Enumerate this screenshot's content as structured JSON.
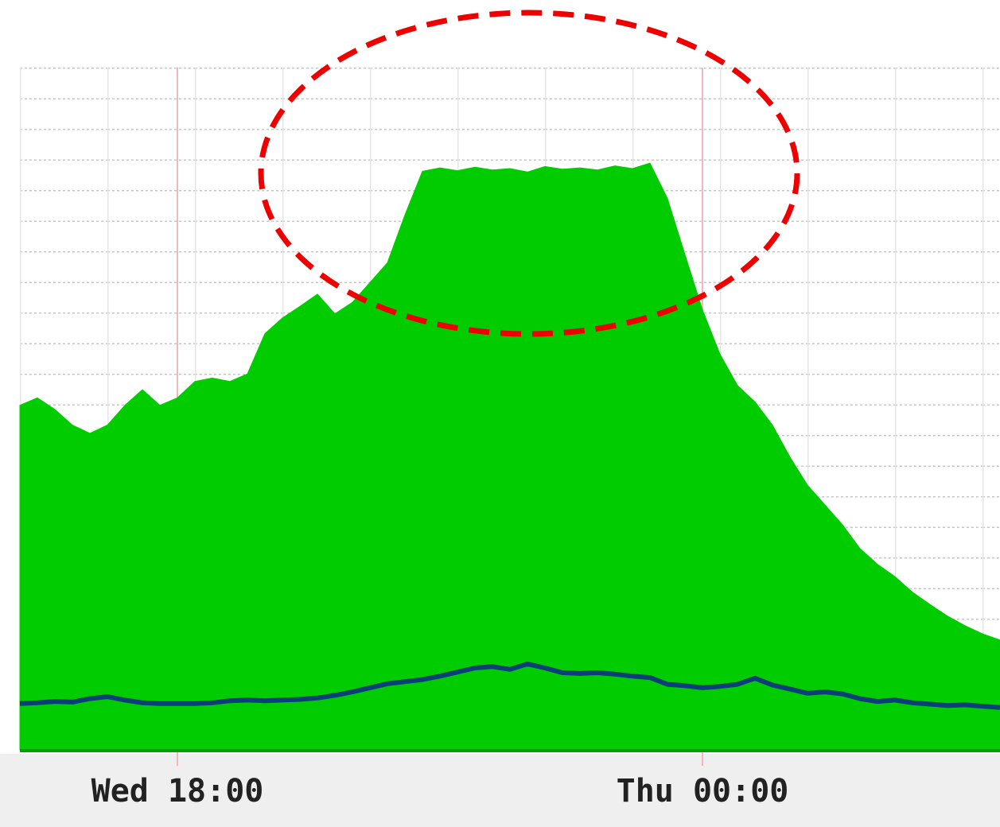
{
  "chart_data": {
    "type": "area",
    "categories": [
      null,
      null,
      null,
      null,
      null,
      null,
      null,
      null,
      null,
      "Wed 18:00",
      null,
      null,
      null,
      null,
      null,
      null,
      null,
      null,
      null,
      null,
      null,
      null,
      null,
      null,
      null,
      null,
      null,
      null,
      null,
      null,
      null,
      null,
      null,
      null,
      null,
      null,
      null,
      null,
      null,
      "Thu 00:00",
      null,
      null,
      null,
      null,
      null,
      null,
      null,
      null,
      null,
      null,
      null,
      null,
      null,
      null,
      null,
      null,
      null
    ],
    "series": [
      {
        "color": "#00cc00",
        "fill": true,
        "values": [
          50.5,
          51.6,
          49.9,
          47.6,
          46.4,
          47.6,
          50.5,
          52.8,
          50.5,
          51.6,
          54.0,
          54.5,
          54.0,
          55.1,
          61.0,
          63.3,
          65.0,
          66.8,
          63.9,
          65.6,
          68.5,
          71.4,
          78.4,
          84.8,
          85.3,
          84.9,
          85.4,
          85.0,
          85.2,
          84.7,
          85.5,
          85.1,
          85.3,
          85.0,
          85.6,
          85.2,
          86.0,
          80.8,
          72.6,
          64.5,
          58.0,
          53.4,
          51.0,
          47.6,
          42.9,
          38.8,
          35.9,
          33.0,
          29.5,
          27.2,
          25.4,
          23.1,
          21.3,
          19.6,
          18.2,
          17.0,
          16.1
        ]
      },
      {
        "color": "#0a3f78",
        "fill": false,
        "values": [
          6.8,
          6.9,
          7.1,
          7.0,
          7.5,
          7.8,
          7.3,
          6.9,
          6.8,
          6.8,
          6.8,
          6.9,
          7.2,
          7.3,
          7.2,
          7.3,
          7.4,
          7.6,
          8.0,
          8.5,
          9.1,
          9.7,
          10.0,
          10.3,
          10.8,
          11.4,
          12.0,
          12.2,
          11.8,
          12.6,
          12.0,
          11.3,
          11.2,
          11.3,
          11.1,
          10.8,
          10.6,
          9.6,
          9.4,
          9.1,
          9.3,
          9.6,
          10.5,
          9.5,
          8.9,
          8.3,
          8.5,
          8.2,
          7.5,
          7.1,
          7.3,
          6.9,
          6.7,
          6.5,
          6.6,
          6.4,
          6.2
        ]
      }
    ],
    "ylim": [
      0,
      100
    ]
  }
}
